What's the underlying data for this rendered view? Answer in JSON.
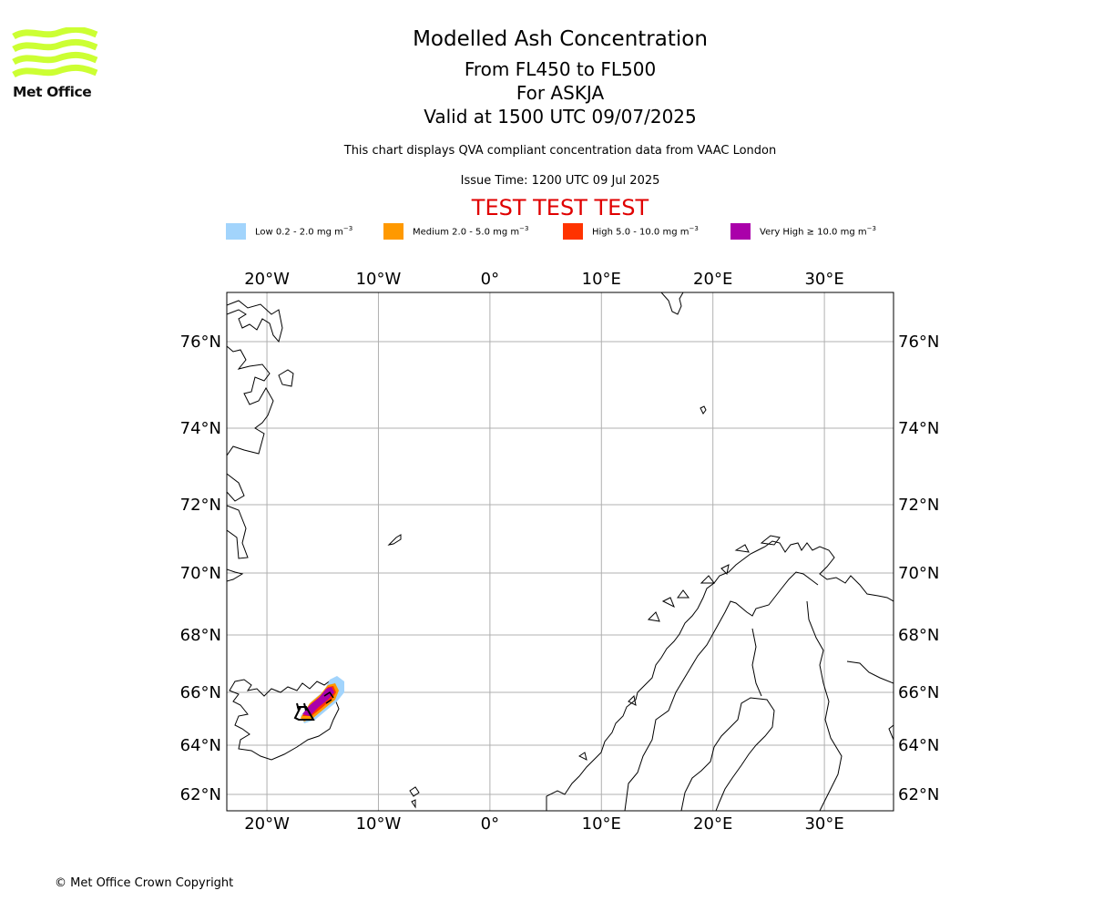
{
  "logo": {
    "text": "Met Office",
    "color": "#ccff33"
  },
  "header": {
    "title": "Modelled Ash Concentration",
    "levels": "From FL450 to FL500",
    "volcano_line": "For ASKJA",
    "valid_line": "Valid at 1500 UTC 09/07/2025",
    "subtitle": "This chart displays QVA compliant concentration data from VAAC London",
    "issue_time": "Issue Time: 1200 UTC 09 Jul 2025",
    "test_banner": "TEST TEST TEST",
    "test_color": "#e00000"
  },
  "legend": [
    {
      "label": "Low 0.2 - 2.0 mg m",
      "sup": "−3",
      "color": "#a2d4fc"
    },
    {
      "label": "Medium 2.0 - 5.0 mg m",
      "sup": "−3",
      "color": "#ff9900"
    },
    {
      "label": "High 5.0 - 10.0 mg m",
      "sup": "−3",
      "color": "#ff3300"
    },
    {
      "label": "Very High  ≥  10.0 mg m",
      "sup": "−3",
      "color": "#aa00aa"
    }
  ],
  "map": {
    "lon_ticks": [
      "20°W",
      "10°W",
      "0°",
      "10°E",
      "20°E",
      "30°E"
    ],
    "lat_ticks": [
      "76°N",
      "74°N",
      "72°N",
      "70°N",
      "68°N",
      "66°N",
      "64°N",
      "62°N"
    ],
    "lon_values": [
      -20,
      -10,
      0,
      10,
      20,
      30
    ],
    "lat_values": [
      76,
      74,
      72,
      70,
      68,
      66,
      64,
      62
    ],
    "lon_range": [
      -23.6,
      36.2
    ],
    "gridlines": true,
    "grid_color": "#b0b0b0"
  },
  "footer": {
    "copyright": "© Met Office Crown Copyright"
  }
}
